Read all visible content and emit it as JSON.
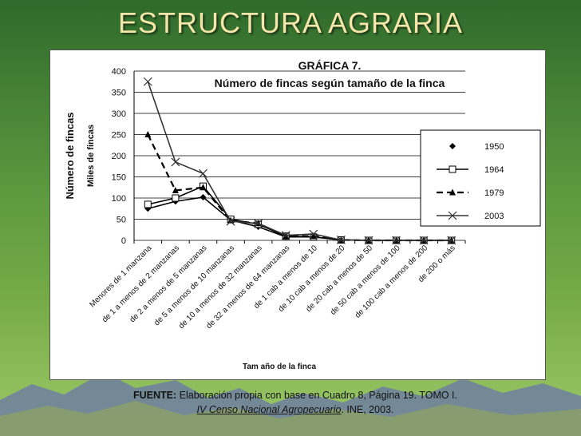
{
  "slide": {
    "title": "ESTRUCTURA AGRARIA"
  },
  "source": {
    "label": "FUENTE:",
    "text1": "Elaboración propia con base en Cuadro 8, Página 19. TOMO I.",
    "ref": "IV Censo Nacional Agropecuario",
    "text2": ".  INE, 2003."
  },
  "chart_data": {
    "type": "line",
    "title": "GRÁFICA 7.",
    "subtitle": "Número de fincas según tamaño de la finca",
    "xlabel": "Tam año  de  la finca",
    "ylabel": "Número de fincas",
    "ylabel_units": "Miles de fincas",
    "ylim": [
      0,
      400
    ],
    "yticks": [
      0,
      50,
      100,
      150,
      200,
      250,
      300,
      350,
      400
    ],
    "grid": true,
    "legend_position": "right",
    "categories": [
      "Menores de 1 manzana",
      "de 1 a menos de 2 manzanas",
      "de 2  a menos de 5 manzanas",
      "de 5 a menos de 10 manzanas",
      "de 10 a menos de 32 manzanas",
      "de 32 a menos de 64 manzanas",
      "de 1 cab a menos de 10",
      "de 10 cab a menos de 20",
      "de 20 cab a menos de 50",
      "de 50 cab a menos de 100",
      "de 100 cab a menos de 200",
      "de 200 o más"
    ],
    "series": [
      {
        "name": "1950",
        "marker": "diamond",
        "style": "solid",
        "color": "#000000",
        "values": [
          75,
          92,
          102,
          48,
          32,
          8,
          8,
          1,
          0,
          0,
          0,
          0
        ]
      },
      {
        "name": "1964",
        "marker": "square",
        "style": "solid",
        "color": "#000000",
        "values": [
          85,
          100,
          128,
          50,
          38,
          10,
          8,
          1,
          0,
          0,
          0,
          0
        ]
      },
      {
        "name": "1979",
        "marker": "triangle",
        "style": "dashed",
        "color": "#000000",
        "values": [
          250,
          118,
          125,
          47,
          40,
          10,
          10,
          1,
          0,
          0,
          0,
          0
        ]
      },
      {
        "name": "2003",
        "marker": "x",
        "style": "solid",
        "color": "#333333",
        "values": [
          375,
          185,
          158,
          45,
          40,
          12,
          15,
          1,
          0,
          0,
          0,
          0
        ]
      }
    ]
  }
}
